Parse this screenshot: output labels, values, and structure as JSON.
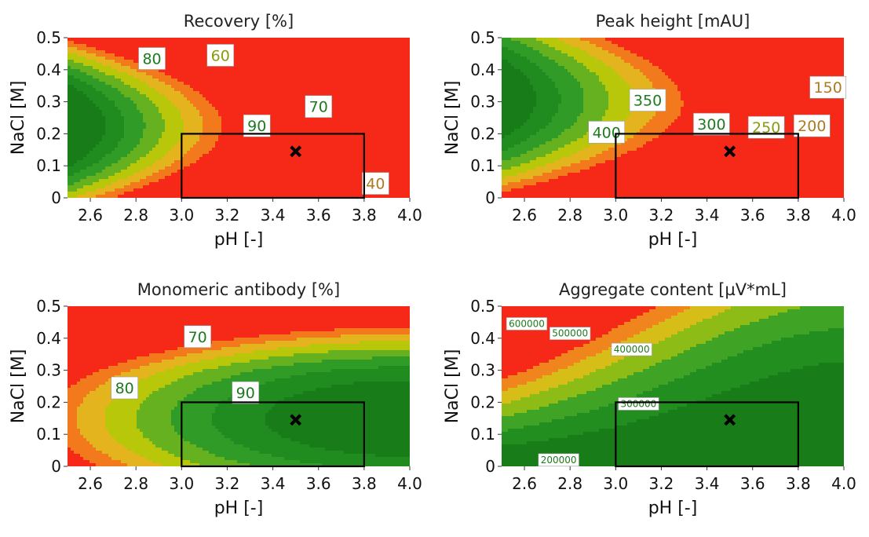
{
  "panel_order": [
    "recovery",
    "peak",
    "monomeric",
    "aggregate"
  ],
  "panels": {
    "recovery": {
      "title": "Recovery [%]"
    },
    "peak": {
      "title": "Peak height [mAU]"
    },
    "monomeric": {
      "title": "Monomeric antibody [%]"
    },
    "aggregate": {
      "title": "Aggregate content [µV*mL]"
    }
  },
  "colors": {
    "dark_green": "#1e8a1e",
    "green": "#2ea02e",
    "yellow": "#c8c800",
    "orange": "#ef8a10",
    "red": "#f42a1a",
    "box": "#000000"
  },
  "chart_data": [
    {
      "type": "contour",
      "title": "Recovery [%]",
      "xlabel": "pH [-]",
      "ylabel": "NaCl [M]",
      "xlim": [
        2.5,
        4.0
      ],
      "ylim": [
        0,
        0.5
      ],
      "xticks": [
        "2.6",
        "2.8",
        "3.0",
        "3.2",
        "3.4",
        "3.6",
        "3.8",
        "4.0"
      ],
      "yticks": [
        "0",
        "0.1",
        "0.2",
        "0.3",
        "0.4",
        "0.5"
      ],
      "contour_labels": [
        {
          "text": "80",
          "x": 2.87,
          "y": 0.435
        },
        {
          "text": "60",
          "x": 3.17,
          "y": 0.445
        },
        {
          "text": "70",
          "x": 3.6,
          "y": 0.285
        },
        {
          "text": "90",
          "x": 3.33,
          "y": 0.225
        },
        {
          "text": "40",
          "x": 3.85,
          "y": 0.045
        }
      ],
      "design_space": {
        "pH": [
          3.0,
          3.8
        ],
        "NaCl": [
          0,
          0.2
        ]
      },
      "optimum": {
        "pH": 3.5,
        "NaCl": 0.145
      }
    },
    {
      "type": "contour",
      "title": "Peak height [mAU]",
      "xlabel": "pH [-]",
      "ylabel": "NaCl [M]",
      "xlim": [
        2.5,
        4.0
      ],
      "ylim": [
        0,
        0.5
      ],
      "xticks": [
        "2.6",
        "2.8",
        "3.0",
        "3.2",
        "3.4",
        "3.6",
        "3.8",
        "4.0"
      ],
      "yticks": [
        "0",
        "0.1",
        "0.2",
        "0.3",
        "0.4",
        "0.5"
      ],
      "contour_labels": [
        {
          "text": "350",
          "x": 3.14,
          "y": 0.305
        },
        {
          "text": "400",
          "x": 2.96,
          "y": 0.205
        },
        {
          "text": "300",
          "x": 3.42,
          "y": 0.23
        },
        {
          "text": "250",
          "x": 3.66,
          "y": 0.22
        },
        {
          "text": "200",
          "x": 3.86,
          "y": 0.225
        },
        {
          "text": "150",
          "x": 3.93,
          "y": 0.345
        }
      ],
      "design_space": {
        "pH": [
          3.0,
          3.8
        ],
        "NaCl": [
          0,
          0.2
        ]
      },
      "optimum": {
        "pH": 3.5,
        "NaCl": 0.145
      }
    },
    {
      "type": "contour",
      "title": "Monomeric antibody [%]",
      "xlabel": "pH [-]",
      "ylabel": "NaCl [M]",
      "xlim": [
        2.5,
        4.0
      ],
      "ylim": [
        0,
        0.5
      ],
      "xticks": [
        "2.6",
        "2.8",
        "3.0",
        "3.2",
        "3.4",
        "3.6",
        "3.8",
        "4.0"
      ],
      "yticks": [
        "0",
        "0.1",
        "0.2",
        "0.3",
        "0.4",
        "0.5"
      ],
      "contour_labels": [
        {
          "text": "70",
          "x": 3.07,
          "y": 0.405
        },
        {
          "text": "80",
          "x": 2.75,
          "y": 0.245
        },
        {
          "text": "90",
          "x": 3.28,
          "y": 0.23
        }
      ],
      "design_space": {
        "pH": [
          3.0,
          3.8
        ],
        "NaCl": [
          0,
          0.2
        ]
      },
      "optimum": {
        "pH": 3.5,
        "NaCl": 0.145
      }
    },
    {
      "type": "contour",
      "title": "Aggregate content [µV*mL]",
      "xlabel": "pH [-]",
      "ylabel": "NaCl [M]",
      "xlim": [
        2.5,
        4.0
      ],
      "ylim": [
        0,
        0.5
      ],
      "xticks": [
        "2.6",
        "2.8",
        "3.0",
        "3.2",
        "3.4",
        "3.6",
        "3.8",
        "4.0"
      ],
      "yticks": [
        "0",
        "0.1",
        "0.2",
        "0.3",
        "0.4",
        "0.5"
      ],
      "contour_labels": [
        {
          "text": "600000",
          "x": 2.61,
          "y": 0.445
        },
        {
          "text": "500000",
          "x": 2.8,
          "y": 0.415
        },
        {
          "text": "400000",
          "x": 3.07,
          "y": 0.365
        },
        {
          "text": "300000",
          "x": 3.1,
          "y": 0.195
        },
        {
          "text": "200000",
          "x": 2.75,
          "y": 0.02
        }
      ],
      "design_space": {
        "pH": [
          3.0,
          3.8
        ],
        "NaCl": [
          0,
          0.2
        ]
      },
      "optimum": {
        "pH": 3.5,
        "NaCl": 0.145
      }
    }
  ]
}
